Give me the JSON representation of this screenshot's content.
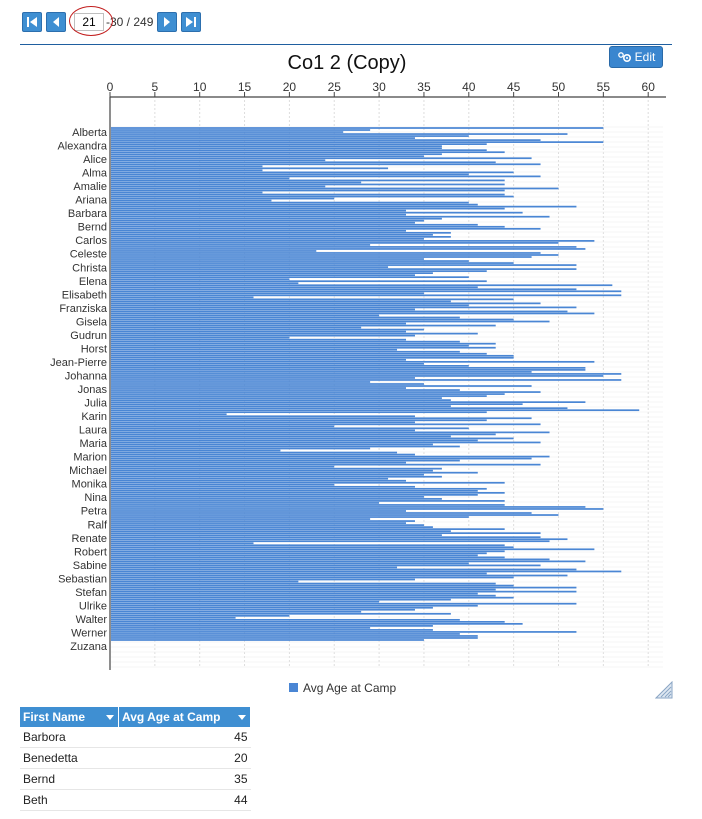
{
  "pager": {
    "current_page": "21",
    "range_text": "-30 / 249"
  },
  "chart_toolbar": {
    "edit_label": "Edit"
  },
  "chart_data": {
    "type": "bar",
    "orientation": "horizontal",
    "title": "Co1 2 (Copy)",
    "xlabel": "",
    "ylabel": "",
    "xlim": [
      0,
      62
    ],
    "ticks": [
      "0",
      "5",
      "10",
      "15",
      "20",
      "25",
      "30",
      "35",
      "40",
      "45",
      "50",
      "55",
      "60"
    ],
    "grid": true,
    "legend_position": "bottom",
    "series": [
      {
        "name": "Avg Age at Camp",
        "color": "#4a86d4",
        "values": [
          55,
          29,
          26,
          51,
          40,
          34,
          48,
          55,
          42,
          37,
          37,
          42,
          44,
          37,
          35,
          47,
          24,
          43,
          48,
          17,
          31,
          17,
          45,
          40,
          48,
          20,
          44,
          28,
          44,
          24,
          50,
          44,
          17,
          44,
          45,
          25,
          18,
          40,
          41,
          52,
          44,
          33,
          46,
          33,
          49,
          37,
          35,
          34,
          41,
          44,
          48,
          33,
          38,
          36,
          38,
          35,
          54,
          50,
          29,
          52,
          53,
          23,
          48,
          50,
          47,
          35,
          40,
          45,
          52,
          31,
          52,
          42,
          36,
          34,
          40,
          20,
          42,
          21,
          56,
          41,
          52,
          57,
          35,
          57,
          16,
          45,
          38,
          48,
          40,
          52,
          34,
          51,
          54,
          30,
          39,
          45,
          49,
          33,
          43,
          28,
          35,
          33,
          41,
          34,
          20,
          33,
          39,
          43,
          40,
          43,
          32,
          39,
          42,
          45,
          45,
          33,
          54,
          35,
          40,
          53,
          53,
          47,
          57,
          55,
          34,
          57,
          29,
          35,
          47,
          33,
          39,
          48,
          44,
          42,
          37,
          38,
          53,
          46,
          38,
          51,
          59,
          42,
          13,
          34,
          47,
          42,
          34,
          48,
          25,
          40,
          34,
          49,
          43,
          38,
          45,
          41,
          48,
          36,
          39,
          29,
          19,
          32,
          34,
          49,
          47,
          39,
          33,
          48,
          25,
          37,
          36,
          41,
          35,
          37,
          31,
          33,
          44,
          25,
          34,
          42,
          41,
          44,
          41,
          35,
          37,
          44,
          30,
          44,
          53,
          55,
          33,
          47,
          50,
          40,
          29,
          34,
          33,
          35,
          36,
          44,
          38,
          48,
          37,
          48,
          51,
          49,
          16,
          44,
          45,
          54,
          44,
          42,
          41,
          44,
          49,
          53,
          40,
          48,
          32,
          52,
          57,
          42,
          51,
          45,
          34,
          21,
          43,
          45,
          52,
          43,
          52,
          41,
          43,
          45,
          38,
          30,
          52,
          41,
          36,
          34,
          28,
          38,
          20,
          14,
          39,
          44,
          46,
          36,
          29,
          36,
          52,
          39,
          41,
          41,
          35
        ]
      }
    ],
    "visible_category_labels": [
      "Alberta",
      "Alexandra",
      "Alice",
      "Alma",
      "Amalie",
      "Ariana",
      "Barbara",
      "Bernd",
      "Carlos",
      "Celeste",
      "Christa",
      "Elena",
      "Elisabeth",
      "Franziska",
      "Gisela",
      "Gudrun",
      "Horst",
      "Jean-Pierre",
      "Johanna",
      "Jonas",
      "Julia",
      "Karin",
      "Laura",
      "Maria",
      "Marion",
      "Michael",
      "Monika",
      "Nina",
      "Petra",
      "Ralf",
      "Renate",
      "Robert",
      "Sabine",
      "Sebastian",
      "Stefan",
      "Ulrike",
      "Walter",
      "Werner",
      "Zuzana"
    ]
  },
  "table": {
    "headers": [
      "First Name",
      "Avg Age at Camp"
    ],
    "rows": [
      [
        "Barbora",
        "45"
      ],
      [
        "Benedetta",
        "20"
      ],
      [
        "Bernd",
        "35"
      ],
      [
        "Beth",
        "44"
      ]
    ]
  }
}
